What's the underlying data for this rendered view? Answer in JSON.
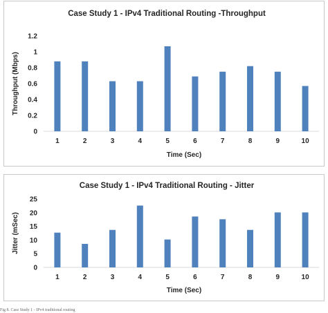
{
  "chart_data": [
    {
      "type": "bar",
      "title": "Case Study 1 - IPv4 Traditional Routing -Throughput",
      "xlabel": "Time (Sec)",
      "ylabel": "Throughput (Mbps)",
      "categories": [
        "1",
        "2",
        "3",
        "4",
        "5",
        "6",
        "7",
        "8",
        "9",
        "10"
      ],
      "values": [
        0.88,
        0.88,
        0.63,
        0.63,
        1.07,
        0.69,
        0.75,
        0.82,
        0.75,
        0.57
      ],
      "ylim": [
        0,
        1.2
      ],
      "yticks": [
        "0",
        "0.2",
        "0.4",
        "0.6",
        "0.8",
        "1",
        "1.2"
      ],
      "grid": false,
      "bar_color": "#4f81bd"
    },
    {
      "type": "bar",
      "title": "Case Study 1 - IPv4 Traditional Routing - Jitter",
      "xlabel": "Time (Sec)",
      "ylabel": "Jitter (mSec)",
      "categories": [
        "1",
        "2",
        "3",
        "4",
        "5",
        "6",
        "7",
        "8",
        "9",
        "10"
      ],
      "values": [
        12.7,
        8.6,
        13.7,
        22.6,
        10.2,
        18.6,
        17.6,
        13.7,
        20.1,
        20.1
      ],
      "ylim": [
        0,
        25
      ],
      "yticks": [
        "0",
        "5",
        "10",
        "15",
        "20",
        "25"
      ],
      "grid": false,
      "bar_color": "#4f81bd"
    }
  ],
  "caption": "Fig 8. Case Study 1 - IPv4 traditional routing"
}
